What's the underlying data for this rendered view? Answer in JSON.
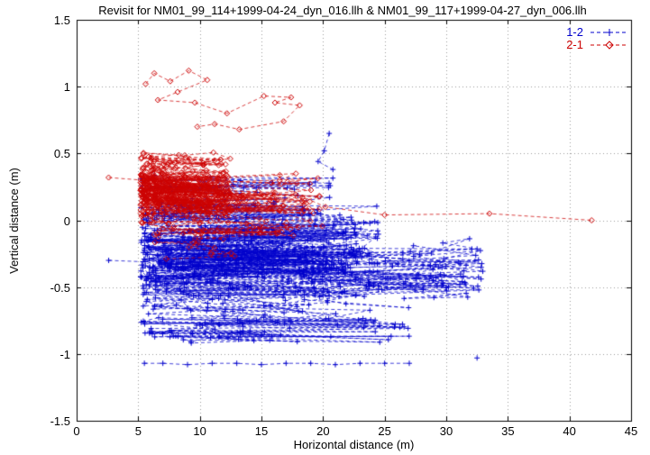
{
  "chart_data": {
    "type": "scatter",
    "title": "Revisit for NM01_99_114+1999-04-24_dyn_016.llh & NM01_99_117+1999-04-27_dyn_006.llh",
    "xlabel": "Horizontal distance (m)",
    "ylabel": "Vertical distance (m)",
    "xlim": [
      0,
      45
    ],
    "ylim": [
      -1.5,
      1.5
    ],
    "xticks": [
      {
        "v": 0,
        "label": "0"
      },
      {
        "v": 5,
        "label": "5"
      },
      {
        "v": 10,
        "label": "10"
      },
      {
        "v": 15,
        "label": "15"
      },
      {
        "v": 20,
        "label": "20"
      },
      {
        "v": 25,
        "label": "25"
      },
      {
        "v": 30,
        "label": "30"
      },
      {
        "v": 35,
        "label": "35"
      },
      {
        "v": 40,
        "label": "40"
      },
      {
        "v": 45,
        "label": "45"
      }
    ],
    "yticks": [
      {
        "v": -1.5,
        "label": "-1.5"
      },
      {
        "v": -1,
        "label": "-1"
      },
      {
        "v": -0.5,
        "label": "-0.5"
      },
      {
        "v": 0,
        "label": "0"
      },
      {
        "v": 0.5,
        "label": "0.5"
      },
      {
        "v": 1,
        "label": "1"
      },
      {
        "v": 1.5,
        "label": "1.5"
      }
    ],
    "grid": true,
    "grid_style": "dotted",
    "legend_position": "top-right-inside",
    "seed": 19990424,
    "series": [
      {
        "name": "1-2",
        "color": "#0000cc",
        "marker": "plus",
        "line": "dashed",
        "clusters": [
          {
            "n": 620,
            "x": [
              5.2,
              24.5
            ],
            "x_skew": 1.3,
            "y_center": -0.33,
            "y_start_spread": 0.6,
            "walk": 0.15,
            "jump": 0.06,
            "jump_spread": 0.9,
            "y_clip": [
              -0.93,
              0.22
            ]
          },
          {
            "n": 140,
            "x": [
              18,
              33
            ],
            "x_skew": 1.0,
            "y_center": -0.38,
            "y_start_spread": 0.5,
            "walk": 0.13,
            "jump": 0.05,
            "jump_spread": 0.7,
            "y_clip": [
              -0.95,
              0.1
            ]
          },
          {
            "n": 90,
            "x": [
              5.2,
              21
            ],
            "x_skew": 1.2,
            "y_center": 0.14,
            "y_start_spread": 0.3,
            "walk": 0.1,
            "jump": 0.05,
            "jump_spread": 0.4,
            "y_clip": [
              -0.02,
              0.52
            ]
          },
          {
            "n": 90,
            "x": [
              5.2,
              27
            ],
            "x_skew": 1.2,
            "y_center": -0.82,
            "y_start_spread": 0.22,
            "walk": 0.08,
            "jump": 0.04,
            "jump_spread": 0.22,
            "y_clip": [
              -0.97,
              -0.62
            ]
          }
        ],
        "chains": [
          [
            [
              5.5,
              -1.07
            ],
            [
              7,
              -1.07
            ],
            [
              9,
              -1.08
            ],
            [
              11,
              -1.07
            ],
            [
              13,
              -1.07
            ],
            [
              15,
              -1.08
            ],
            [
              17,
              -1.07
            ],
            [
              19,
              -1.07
            ],
            [
              21,
              -1.08
            ],
            [
              23,
              -1.07
            ],
            [
              25,
              -1.07
            ],
            [
              27,
              -1.07
            ]
          ],
          [
            [
              32.5,
              -1.03
            ]
          ],
          [
            [
              2.6,
              -0.3
            ],
            [
              5.4,
              -0.31
            ]
          ],
          [
            [
              20.5,
              0.65
            ],
            [
              20.1,
              0.52
            ],
            [
              19.6,
              0.44
            ],
            [
              20.8,
              0.38
            ]
          ]
        ]
      },
      {
        "name": "2-1",
        "color": "#cc0000",
        "marker": "diamond",
        "line": "dashed",
        "clusters": [
          {
            "n": 460,
            "x": [
              5.2,
              12.5
            ],
            "x_skew": 1.5,
            "y_center": 0.23,
            "y_start_spread": 0.45,
            "walk": 0.13,
            "jump": 0.06,
            "jump_spread": 0.5,
            "y_clip": [
              -0.1,
              0.66
            ]
          },
          {
            "n": 110,
            "x": [
              8,
              20
            ],
            "x_skew": 1.1,
            "y_center": 0.08,
            "y_start_spread": 0.35,
            "walk": 0.11,
            "jump": 0.05,
            "jump_spread": 0.45,
            "y_clip": [
              -0.28,
              0.56
            ]
          },
          {
            "n": 45,
            "x": [
              5.5,
              18
            ],
            "x_skew": 1.0,
            "y_center": -0.18,
            "y_start_spread": 0.2,
            "walk": 0.09,
            "jump": 0.04,
            "jump_spread": 0.25,
            "y_clip": [
              -0.36,
              0.02
            ]
          }
        ],
        "chains": [
          [
            [
              5.6,
              1.02
            ],
            [
              6.3,
              1.1
            ],
            [
              7.6,
              1.04
            ],
            [
              9.1,
              1.12
            ],
            [
              10.6,
              1.05
            ],
            [
              8.2,
              0.96
            ],
            [
              6.6,
              0.9
            ],
            [
              9.6,
              0.88
            ],
            [
              12.2,
              0.8
            ],
            [
              15.2,
              0.93
            ],
            [
              17.4,
              0.92
            ],
            [
              16.1,
              0.88
            ],
            [
              18.1,
              0.86
            ],
            [
              16.8,
              0.74
            ],
            [
              13.2,
              0.68
            ],
            [
              11.2,
              0.72
            ],
            [
              9.8,
              0.7
            ]
          ],
          [
            [
              15.8,
              0.28
            ],
            [
              20.2,
              0.1
            ],
            [
              25,
              0.04
            ],
            [
              33.5,
              0.05
            ],
            [
              41.8,
              0.0
            ]
          ],
          [
            [
              2.6,
              0.32
            ],
            [
              5.4,
              0.3
            ]
          ]
        ]
      }
    ]
  }
}
